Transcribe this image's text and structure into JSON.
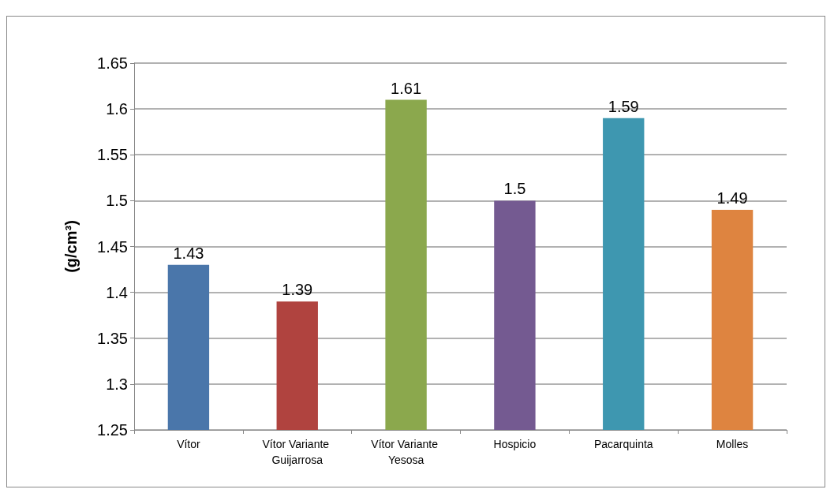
{
  "chart_data": {
    "type": "bar",
    "ylabel": "(g/cm³)",
    "categories": [
      "Vítor",
      "Vítor Variante Guijarrosa",
      "Vítor Variante Yesosa",
      "Hospicio",
      "Pacarquinta",
      "Molles"
    ],
    "values": [
      1.43,
      1.39,
      1.61,
      1.5,
      1.59,
      1.49
    ],
    "colors": [
      "#4a76aa",
      "#b0433f",
      "#8ba84d",
      "#745a91",
      "#3e97b0",
      "#de8440"
    ],
    "ylim": [
      1.25,
      1.65
    ],
    "yticks": [
      1.25,
      1.3,
      1.35,
      1.4,
      1.45,
      1.5,
      1.55,
      1.6,
      1.65
    ],
    "grid": true,
    "data_labels": true
  }
}
